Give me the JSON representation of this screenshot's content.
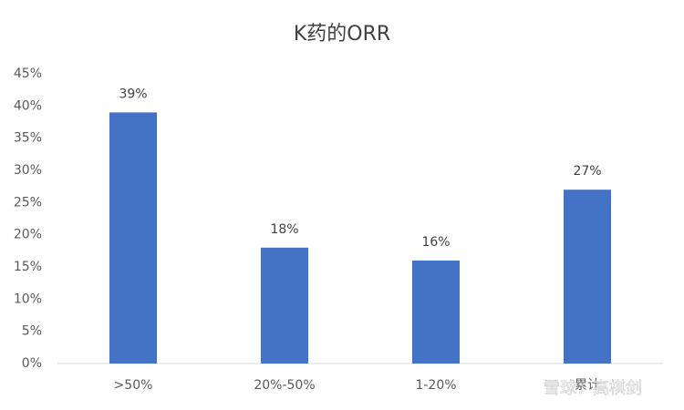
{
  "chart_data": {
    "type": "bar",
    "title": "K药的ORR",
    "categories": [
      ">50%",
      "20%-50%",
      "1-20%",
      "累计"
    ],
    "values": [
      39,
      18,
      16,
      27
    ],
    "value_labels": [
      "39%",
      "18%",
      "16%",
      "27%"
    ],
    "color": "#4472c4",
    "ylim": [
      0,
      45
    ],
    "yticks": [
      {
        "value": 0,
        "label": "0%"
      },
      {
        "value": 5,
        "label": "5%"
      },
      {
        "value": 10,
        "label": "10%"
      },
      {
        "value": 15,
        "label": "15%"
      },
      {
        "value": 20,
        "label": "20%"
      },
      {
        "value": 25,
        "label": "25%"
      },
      {
        "value": 30,
        "label": "30%"
      },
      {
        "value": 35,
        "label": "35%"
      },
      {
        "value": 40,
        "label": "40%"
      },
      {
        "value": 45,
        "label": "45%"
      }
    ],
    "grid": false
  },
  "watermark": "雪球：高棋剑"
}
